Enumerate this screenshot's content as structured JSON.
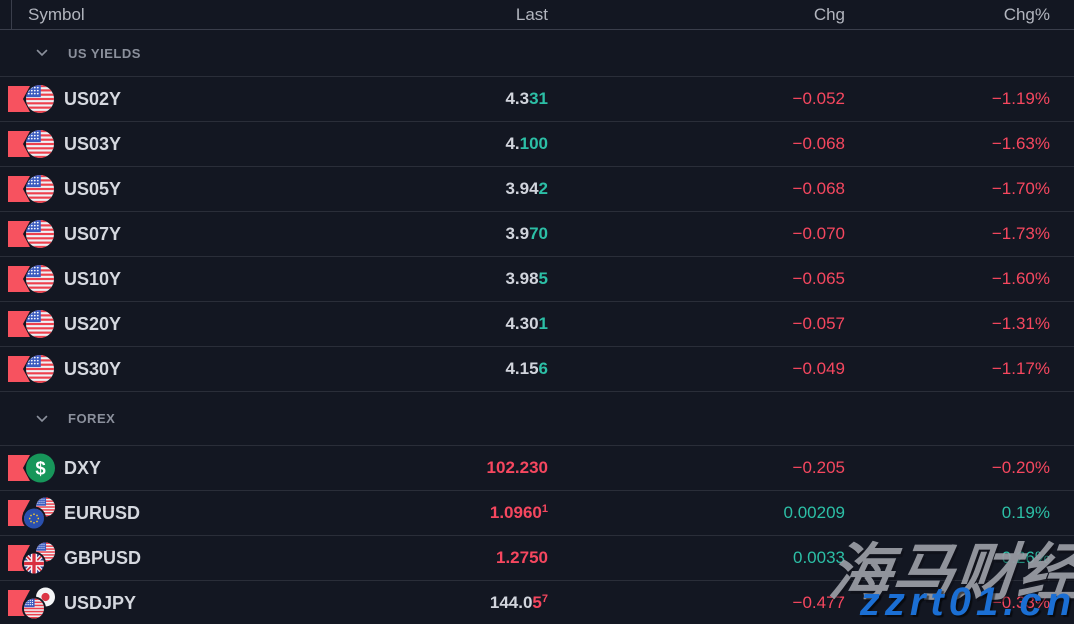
{
  "header": {
    "columns": {
      "symbol": "Symbol",
      "last": "Last",
      "chg": "Chg",
      "chg_pct": "Chg%"
    }
  },
  "colors": {
    "background": "#131722",
    "up": "#2cbfa6",
    "down": "#f6475f",
    "flag_marker": "#f7525f",
    "divider": "#2a2e39",
    "dxy_icon_green": "#17965a"
  },
  "sections": [
    {
      "label": "US YIELDS",
      "chevron_icon": "chevron-down-icon",
      "rows": [
        {
          "symbol": "US02Y",
          "icon": {
            "type": "single",
            "flag": "us"
          },
          "flagged": true,
          "last_white": "4.3",
          "last_colored": "31",
          "last_sup": "",
          "last_dir": "up",
          "chg": "−0.052",
          "chg_pct": "−1.19%",
          "chg_dir": "down"
        },
        {
          "symbol": "US03Y",
          "icon": {
            "type": "single",
            "flag": "us"
          },
          "flagged": true,
          "last_white": "4.",
          "last_colored": "100",
          "last_sup": "",
          "last_dir": "up",
          "chg": "−0.068",
          "chg_pct": "−1.63%",
          "chg_dir": "down"
        },
        {
          "symbol": "US05Y",
          "icon": {
            "type": "single",
            "flag": "us"
          },
          "flagged": true,
          "last_white": "3.94",
          "last_colored": "2",
          "last_sup": "",
          "last_dir": "up",
          "chg": "−0.068",
          "chg_pct": "−1.70%",
          "chg_dir": "down"
        },
        {
          "symbol": "US07Y",
          "icon": {
            "type": "single",
            "flag": "us"
          },
          "flagged": true,
          "last_white": "3.9",
          "last_colored": "70",
          "last_sup": "",
          "last_dir": "up",
          "chg": "−0.070",
          "chg_pct": "−1.73%",
          "chg_dir": "down"
        },
        {
          "symbol": "US10Y",
          "icon": {
            "type": "single",
            "flag": "us"
          },
          "flagged": true,
          "last_white": "3.98",
          "last_colored": "5",
          "last_sup": "",
          "last_dir": "up",
          "chg": "−0.065",
          "chg_pct": "−1.60%",
          "chg_dir": "down"
        },
        {
          "symbol": "US20Y",
          "icon": {
            "type": "single",
            "flag": "us"
          },
          "flagged": true,
          "last_white": "4.30",
          "last_colored": "1",
          "last_sup": "",
          "last_dir": "up",
          "chg": "−0.057",
          "chg_pct": "−1.31%",
          "chg_dir": "down"
        },
        {
          "symbol": "US30Y",
          "icon": {
            "type": "single",
            "flag": "us"
          },
          "flagged": true,
          "last_white": "4.15",
          "last_colored": "6",
          "last_sup": "",
          "last_dir": "up",
          "chg": "−0.049",
          "chg_pct": "−1.17%",
          "chg_dir": "down"
        }
      ]
    },
    {
      "label": "FOREX",
      "chevron_icon": "chevron-down-icon",
      "rows": [
        {
          "symbol": "DXY",
          "icon": {
            "type": "dxy"
          },
          "flagged": true,
          "last_white": "",
          "last_colored": "102.230",
          "last_sup": "",
          "last_dir": "down",
          "chg": "−0.205",
          "chg_pct": "−0.20%",
          "chg_dir": "down"
        },
        {
          "symbol": "EURUSD",
          "icon": {
            "type": "pair",
            "base": "eu",
            "quote": "us"
          },
          "flagged": true,
          "last_white": "",
          "last_colored": "1.0960",
          "last_sup": "1",
          "last_dir": "down",
          "chg": "0.00209",
          "chg_pct": "0.19%",
          "chg_dir": "up"
        },
        {
          "symbol": "GBPUSD",
          "icon": {
            "type": "pair",
            "base": "gb",
            "quote": "us"
          },
          "flagged": true,
          "last_white": "",
          "last_colored": "1.2750",
          "last_sup": "",
          "last_dir": "down",
          "chg": "0.0033",
          "chg_pct": "0.26%",
          "chg_dir": "up"
        },
        {
          "symbol": "USDJPY",
          "icon": {
            "type": "pair",
            "base": "us",
            "quote": "jp"
          },
          "flagged": true,
          "last_white": "144.0",
          "last_colored": "5",
          "last_sup": "7",
          "last_dir": "down",
          "chg": "−0.477",
          "chg_pct": "−0.33%",
          "chg_dir": "down"
        }
      ]
    }
  ],
  "watermark": {
    "line1": "海马财经",
    "line2": "zzrt01.cn"
  }
}
